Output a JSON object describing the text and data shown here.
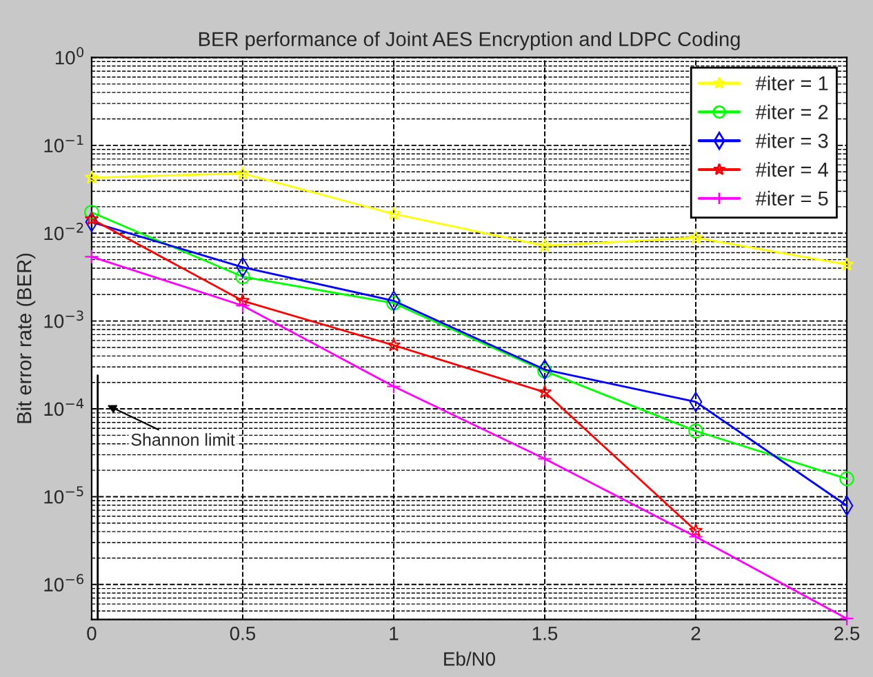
{
  "chart_data": {
    "type": "line",
    "title": "BER performance of Joint AES Encryption and LDPC Coding",
    "xlabel": "Eb/N0",
    "ylabel": "Bit error rate (BER)",
    "x": [
      0,
      0.5,
      1,
      1.5,
      2,
      2.5
    ],
    "series": [
      {
        "name": "#iter = 1",
        "color": "#ffff00",
        "marker": "star",
        "values": [
          0.043,
          0.048,
          0.0166,
          0.0072,
          0.0089,
          0.0044
        ]
      },
      {
        "name": "#iter = 2",
        "color": "#00ff00",
        "marker": "circle",
        "values": [
          0.0173,
          0.0032,
          0.0016,
          0.00027,
          5.6e-05,
          1.6e-05
        ]
      },
      {
        "name": "#iter = 3",
        "color": "#0000ff",
        "marker": "diamond",
        "values": [
          0.0134,
          0.0041,
          0.0017,
          0.00028,
          0.00012,
          7.9e-06
        ]
      },
      {
        "name": "#iter = 4",
        "color": "#ff0000",
        "marker": "star",
        "values": [
          0.0145,
          0.0017,
          0.00053,
          0.000155,
          4.1e-06,
          null
        ]
      },
      {
        "name": "#iter = 5",
        "color": "#ff00ff",
        "marker": "cross",
        "values": [
          0.0054,
          0.0015,
          0.00018,
          2.7e-05,
          3.5e-06,
          4.1e-07
        ]
      },
      {
        "color": "#000000",
        "marker": "none",
        "x": [
          0.02,
          0.02
        ],
        "values": [
          0.00024,
          4e-07
        ]
      }
    ],
    "annotations": [
      {
        "text": "Shannon limit",
        "x": 0.04,
        "y": 0.000115
      }
    ],
    "log": "y",
    "xlim": [
      0,
      2.5
    ],
    "ylim": [
      4e-07,
      1
    ],
    "xticks": [
      0,
      0.5,
      1,
      1.5,
      2,
      2.5
    ],
    "yticks": [
      {
        "value": 1e-06,
        "label": "10$^{−6}$"
      },
      {
        "value": 1e-05,
        "label": "10$^{−5}$"
      },
      {
        "value": 0.0001,
        "label": "10$^{−4}$"
      },
      {
        "value": 0.001,
        "label": "10$^{−3}$"
      },
      {
        "value": 0.01,
        "label": "10$^{−2}$"
      },
      {
        "value": 0.1,
        "label": "10$^{−1}$"
      },
      {
        "value": 1,
        "label": "10$^{0}$"
      }
    ],
    "grid": true,
    "legend": "top right",
    "line_style": "solid"
  }
}
